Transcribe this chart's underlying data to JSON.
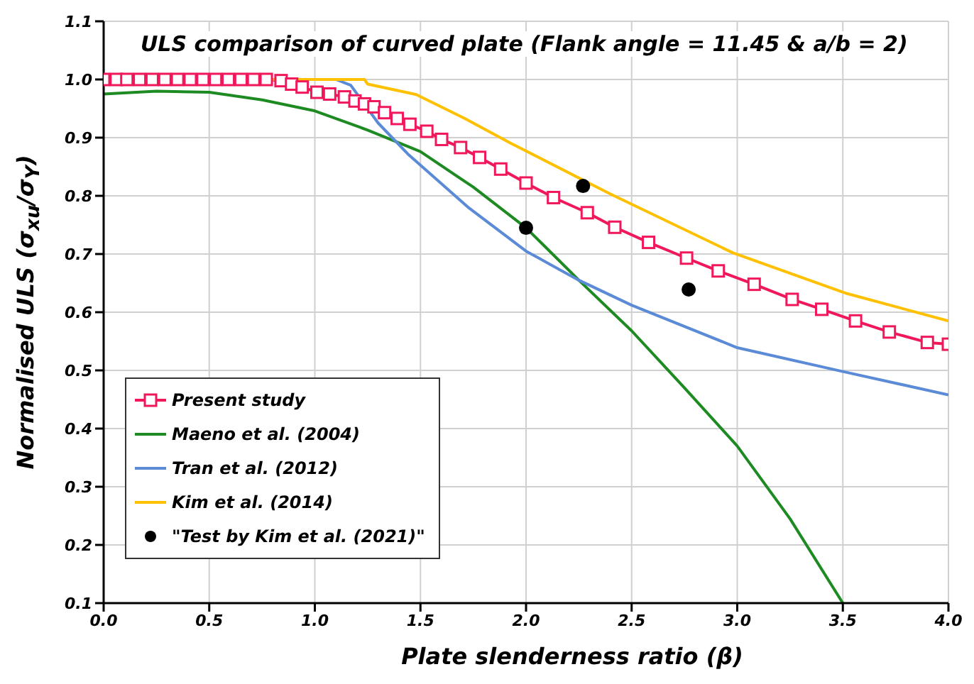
{
  "chart_data": {
    "type": "line",
    "title": "ULS comparison of curved plate (Flank angle = 11.45 & a/b = 2)",
    "xlabel": "Plate slenderness ratio (β)",
    "ylabel": "Normalised ULS (σ$_{xu}$/σ$_{Y}$)",
    "xlim": [
      0,
      4
    ],
    "xticks": [
      {
        "value": 0,
        "label": "0.0"
      },
      0.5,
      {
        "value": 1,
        "label": "1.0"
      },
      1.5,
      {
        "value": 2,
        "label": "2.0"
      },
      2.5,
      {
        "value": 3,
        "label": "3.0"
      },
      3.5,
      {
        "value": 4,
        "label": "4.0"
      }
    ],
    "ylim": [
      0.1,
      1.1
    ],
    "yticks": [
      0.1,
      0.2,
      0.3,
      0.4,
      0.5,
      0.6,
      0.7,
      0.8,
      0.9,
      {
        "value": 1,
        "label": "1.0"
      },
      1.1
    ],
    "grid": true,
    "legend": "bottom left",
    "line_style": "solid",
    "series": [
      {
        "name": "Present study",
        "color": "#f0185a",
        "marker": "square",
        "x": [
          0,
          0.06,
          0.11,
          0.17,
          0.23,
          0.29,
          0.35,
          0.41,
          0.47,
          0.53,
          0.59,
          0.65,
          0.71,
          0.77,
          0.84,
          0.89,
          0.94,
          1.01,
          1.07,
          1.14,
          1.19,
          1.235,
          1.28,
          1.33,
          1.39,
          1.45,
          1.53,
          1.6,
          1.69,
          1.78,
          1.88,
          2.0,
          2.13,
          2.29,
          2.42,
          2.58,
          2.76,
          2.91,
          3.08,
          3.26,
          3.4,
          3.56,
          3.72,
          3.9,
          4.0
        ],
        "values": [
          1,
          1,
          1,
          1,
          1,
          1,
          1,
          1,
          1,
          1,
          1,
          1,
          1,
          1,
          0.998,
          0.992,
          0.987,
          0.978,
          0.975,
          0.97,
          0.963,
          0.958,
          0.953,
          0.943,
          0.933,
          0.923,
          0.911,
          0.897,
          0.883,
          0.866,
          0.846,
          0.822,
          0.797,
          0.771,
          0.746,
          0.72,
          0.693,
          0.671,
          0.648,
          0.622,
          0.605,
          0.585,
          0.566,
          0.548,
          0.545
        ]
      },
      {
        "name": "Maeno et al. (2004)",
        "color": "#1e8a22",
        "marker": "none",
        "x": [
          0,
          0.25,
          0.5,
          0.75,
          1,
          1.25,
          1.5,
          1.75,
          2,
          2.25,
          2.5,
          2.75,
          3,
          3.25,
          3.5
        ],
        "values": [
          0.975,
          0.98,
          0.978,
          0.965,
          0.946,
          0.913,
          0.876,
          0.815,
          0.745,
          0.655,
          0.568,
          0.47,
          0.37,
          0.245,
          0.1
        ]
      },
      {
        "name": "Tran et al. (2012)",
        "color": "#5b8bd6",
        "marker": "none",
        "x": [
          1.1,
          1.17,
          1.3,
          1.44,
          1.73,
          2,
          2.25,
          2.5,
          3,
          3.5,
          4
        ],
        "values": [
          1,
          0.99,
          0.925,
          0.872,
          0.779,
          0.705,
          0.655,
          0.612,
          0.539,
          0.498,
          0.458
        ]
      },
      {
        "name": "Kim et al. (2014)",
        "color": "#ffc000",
        "marker": "none",
        "x": [
          0,
          1,
          1.235,
          1.25,
          1.48,
          1.71,
          1.93,
          2.4,
          2.98,
          3.52,
          4
        ],
        "values": [
          1,
          1,
          1,
          0.992,
          0.974,
          0.933,
          0.89,
          0.803,
          0.702,
          0.632,
          0.585
        ]
      },
      {
        "name": "\"Test by Kim et al. (2021)\"",
        "type": "scatter",
        "color": "#000000",
        "marker": "circle",
        "x": [
          2,
          2.27,
          2.77
        ],
        "values": [
          0.745,
          0.817,
          0.639
        ]
      }
    ]
  }
}
